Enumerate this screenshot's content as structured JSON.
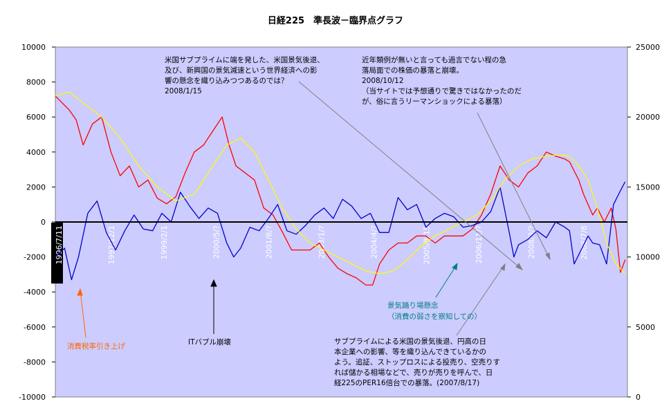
{
  "chart_data": {
    "type": "line",
    "title": "日経225　準長波－臨界点グラフ",
    "y_left": {
      "lim": [
        -10000,
        10000
      ],
      "ticks": [
        10000,
        8000,
        6000,
        4000,
        2000,
        0,
        -2000,
        -4000,
        -6000,
        -8000,
        -10000
      ]
    },
    "y_right": {
      "lim": [
        0,
        25000
      ],
      "ticks": [
        25000,
        20000,
        15000,
        10000,
        5000,
        0
      ]
    },
    "x_range": [
      "1996/7/11",
      "2008/10/31"
    ],
    "x_tick_labels": [
      "1996/7/11",
      "1997/12/1",
      "1999/2/1",
      "2000/5/?",
      "2001/8/?",
      "2003/1/?",
      "2004/4/?",
      "2005/8/15",
      "2006/11/?",
      "2008/3/?",
      "2008/7/8"
    ],
    "grid": false,
    "background": "#ccccff",
    "colors": {
      "price": "#ff0000",
      "wave": "#0000cc",
      "trend": "#ffff00",
      "zero_line": "#000000"
    },
    "series": [
      {
        "axis": "right",
        "color": "#ff0000",
        "x": [
          1996.5,
          1996.8,
          1996.95,
          1997.1,
          1997.3,
          1997.5,
          1997.7,
          1997.9,
          1998.1,
          1998.3,
          1998.5,
          1998.7,
          1998.9,
          1999.1,
          1999.3,
          1999.5,
          1999.7,
          1999.9,
          2000.1,
          2000.25,
          2000.4,
          2000.6,
          2000.8,
          2001.0,
          2001.2,
          2001.4,
          2001.6,
          2001.8,
          2002.0,
          2002.2,
          2002.4,
          2002.6,
          2002.8,
          2003.0,
          2003.2,
          2003.35,
          2003.5,
          2003.7,
          2003.9,
          2004.1,
          2004.3,
          2004.5,
          2004.7,
          2004.9,
          2005.1,
          2005.3,
          2005.5,
          2005.7,
          2005.9,
          2006.1,
          2006.3,
          2006.5,
          2006.7,
          2006.9,
          2007.1,
          2007.3,
          2007.5,
          2007.6,
          2007.8,
          2007.9,
          2008.1,
          2008.2,
          2008.35,
          2008.5,
          2008.6,
          2008.7,
          2008.8
        ],
        "y": [
          21500,
          20500,
          19800,
          18000,
          19500,
          20000,
          17500,
          15800,
          16500,
          15000,
          15500,
          14200,
          13800,
          14300,
          16000,
          17500,
          18000,
          19000,
          20000,
          18000,
          16500,
          16000,
          15500,
          13500,
          13000,
          11800,
          10500,
          10500,
          10500,
          11000,
          10000,
          9200,
          8800,
          8500,
          8000,
          8000,
          9500,
          10500,
          11000,
          11000,
          11500,
          11500,
          11000,
          11500,
          11500,
          11500,
          12000,
          13000,
          14500,
          16500,
          15500,
          15000,
          16000,
          16500,
          17500,
          17200,
          17000,
          16800,
          15500,
          14500,
          13000,
          13500,
          12500,
          13500,
          12000,
          8900,
          9800
        ]
      },
      {
        "axis": "left",
        "color": "#0000cc",
        "x": [
          1996.5,
          1996.7,
          1996.85,
          1997.0,
          1997.2,
          1997.4,
          1997.6,
          1997.8,
          1998.0,
          1998.2,
          1998.4,
          1998.6,
          1998.8,
          1999.0,
          1999.2,
          1999.4,
          1999.6,
          1999.8,
          2000.0,
          2000.2,
          2000.35,
          2000.5,
          2000.7,
          2000.9,
          2001.1,
          2001.3,
          2001.5,
          2001.7,
          2001.9,
          2002.1,
          2002.3,
          2002.5,
          2002.7,
          2002.9,
          2003.1,
          2003.3,
          2003.5,
          2003.7,
          2003.9,
          2004.1,
          2004.3,
          2004.5,
          2004.7,
          2004.9,
          2005.1,
          2005.3,
          2005.5,
          2005.7,
          2005.9,
          2006.1,
          2006.3,
          2006.4,
          2006.5,
          2006.7,
          2006.9,
          2007.1,
          2007.3,
          2007.5,
          2007.6,
          2007.7,
          2007.85,
          2008.0,
          2008.1,
          2008.25,
          2008.4,
          2008.55,
          2008.7,
          2008.8
        ],
        "y": [
          -2000,
          -1500,
          -3300,
          -2000,
          500,
          1200,
          -600,
          -1600,
          -500,
          400,
          -400,
          -500,
          500,
          0,
          1700,
          900,
          200,
          800,
          500,
          -1200,
          -2000,
          -1500,
          -300,
          -500,
          200,
          1000,
          -500,
          -700,
          -200,
          400,
          800,
          200,
          1300,
          900,
          200,
          500,
          -600,
          -600,
          1400,
          700,
          1000,
          -300,
          200,
          500,
          300,
          -300,
          -200,
          0,
          600,
          2000,
          -600,
          -2000,
          -1300,
          -1000,
          -500,
          -900,
          0,
          -300,
          -500,
          -2400,
          -1600,
          -800,
          -1200,
          -1300,
          -2400,
          1000,
          1800,
          2300
        ]
      },
      {
        "axis": "right",
        "color": "#ffff00",
        "x": [
          1996.5,
          1996.8,
          1997.1,
          1997.5,
          1997.9,
          1998.3,
          1998.7,
          1999.1,
          1999.5,
          1999.9,
          2000.2,
          2000.5,
          2000.8,
          2001.1,
          2001.4,
          2001.7,
          2002.0,
          2002.3,
          2002.6,
          2002.9,
          2003.2,
          2003.5,
          2003.8,
          2004.1,
          2004.4,
          2004.7,
          2005.0,
          2005.3,
          2005.6,
          2005.9,
          2006.2,
          2006.5,
          2006.8,
          2007.1,
          2007.4,
          2007.6,
          2007.8,
          2008.0,
          2008.2,
          2008.4,
          2008.6,
          2008.8
        ],
        "y": [
          21500,
          21800,
          21000,
          20000,
          18500,
          16500,
          15000,
          14000,
          14500,
          16500,
          18000,
          18500,
          17500,
          15500,
          13500,
          12000,
          11000,
          10500,
          10000,
          9500,
          9000,
          8800,
          9000,
          9800,
          10800,
          11500,
          12000,
          12500,
          13000,
          14000,
          15500,
          16500,
          17000,
          17200,
          17300,
          17200,
          16500,
          15500,
          13500,
          11000,
          9500,
          8800
        ]
      }
    ],
    "annotations": [
      {
        "lines": [
          "米国サブプライムに端を発した、米国景気後退、",
          "及び、新興国の景気減速という世界経済への影",
          "響の懸念を織り込みつつあるのでは？",
          "2008/1/15"
        ],
        "color": "#000000"
      },
      {
        "lines": [
          "近年類例が無いと言っても過言でない程の急",
          "落局面での株価の暴落と崩壊。",
          "2008/10/12",
          "（当サイトでは予想通りで驚きではなかったのだ",
          "が、俗に言うリーマンショックによる暴落）"
        ],
        "color": "#000000"
      },
      {
        "lines": [
          "消費税率引き上げ"
        ],
        "color": "#ff6600"
      },
      {
        "lines": [
          "ITバブル崩壊"
        ],
        "color": "#000000"
      },
      {
        "lines": [
          "景気踊り場懸念",
          "（消費の弱さを察知しての）"
        ],
        "color": "#008080"
      },
      {
        "lines": [
          "サブプライムによる米国の景気後退、円高の日",
          "本企業への影響、等を織り込んできているかの",
          "よう。追証、ストップロスによる投売り、空売りす",
          "れば儲かる相場などで、売りが売りを呼んで、日",
          "経225のPER16倍台での暴落。(2007/8/17)"
        ],
        "color": "#000000"
      }
    ]
  }
}
